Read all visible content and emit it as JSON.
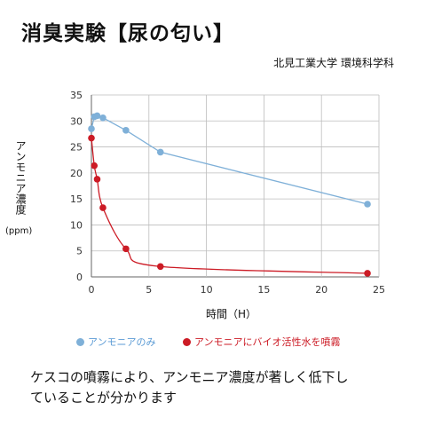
{
  "title": "消臭実験【尿の匂い】",
  "subtitle": "北見工業大学 環境科学科",
  "caption": {
    "line1": "ケスコの噴霧により、アンモニア濃度が著しく低下し",
    "line2": "ていることが分かります"
  },
  "chart_data": {
    "type": "line",
    "xlabel": "時間（H）",
    "ylabel": "アンモニア濃度",
    "yunit": "(ppm)",
    "xlim": [
      0,
      25
    ],
    "ylim": [
      0,
      35
    ],
    "xticks": [
      0,
      5,
      10,
      15,
      20,
      25
    ],
    "yticks": [
      0,
      5,
      10,
      15,
      20,
      25,
      30,
      35
    ],
    "grid": true,
    "legend_position": "bottom",
    "series": [
      {
        "name": "アンモニアのみ",
        "color": "#7fb0d8",
        "x": [
          0,
          0.25,
          0.5,
          1,
          3,
          6,
          24
        ],
        "y": [
          28.5,
          30.8,
          31.0,
          30.6,
          28.2,
          24.0,
          14.0
        ]
      },
      {
        "name": "アンモニアにバイオ活性水を噴霧",
        "color": "#cc1b25",
        "x": [
          0,
          0.25,
          0.5,
          1,
          3,
          6,
          24
        ],
        "y": [
          26.7,
          21.4,
          18.8,
          13.3,
          5.4,
          2.0,
          0.7
        ]
      }
    ]
  }
}
